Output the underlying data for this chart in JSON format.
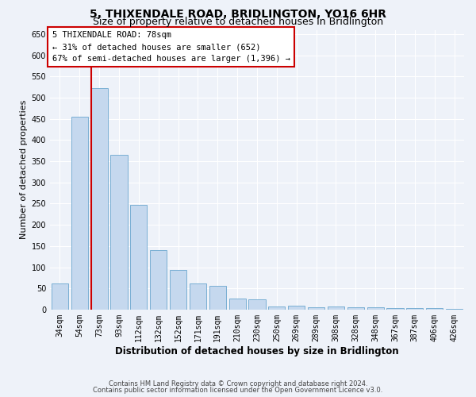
{
  "title": "5, THIXENDALE ROAD, BRIDLINGTON, YO16 6HR",
  "subtitle": "Size of property relative to detached houses in Bridlington",
  "xlabel": "Distribution of detached houses by size in Bridlington",
  "ylabel": "Number of detached properties",
  "categories": [
    "34sqm",
    "54sqm",
    "73sqm",
    "93sqm",
    "112sqm",
    "132sqm",
    "152sqm",
    "171sqm",
    "191sqm",
    "210sqm",
    "230sqm",
    "250sqm",
    "269sqm",
    "289sqm",
    "308sqm",
    "328sqm",
    "348sqm",
    "367sqm",
    "387sqm",
    "406sqm",
    "426sqm"
  ],
  "values": [
    62,
    455,
    522,
    365,
    248,
    140,
    93,
    62,
    57,
    26,
    25,
    8,
    10,
    5,
    8,
    5,
    5,
    3,
    3,
    3,
    2
  ],
  "bar_color": "#c5d8ee",
  "bar_edge_color": "#7aafd4",
  "vline_color": "#cc0000",
  "annotation_text": "5 THIXENDALE ROAD: 78sqm\n← 31% of detached houses are smaller (652)\n67% of semi-detached houses are larger (1,396) →",
  "annotation_box_color": "#cc0000",
  "ylim": [
    0,
    660
  ],
  "yticks": [
    0,
    50,
    100,
    150,
    200,
    250,
    300,
    350,
    400,
    450,
    500,
    550,
    600,
    650
  ],
  "footnote1": "Contains HM Land Registry data © Crown copyright and database right 2024.",
  "footnote2": "Contains public sector information licensed under the Open Government Licence v3.0.",
  "bg_color": "#eef2f9",
  "grid_color": "#ffffff",
  "title_fontsize": 10,
  "subtitle_fontsize": 9,
  "tick_fontsize": 7,
  "ylabel_fontsize": 8,
  "xlabel_fontsize": 8.5,
  "annot_fontsize": 7.5
}
